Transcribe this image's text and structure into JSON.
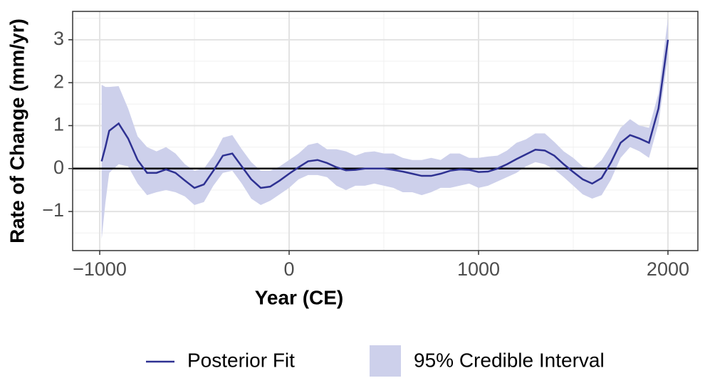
{
  "chart_data": {
    "type": "line",
    "x_label": "Year (CE)",
    "y_label": "Rate of Change (mm/yr)",
    "x": [
      -990,
      -970,
      -950,
      -900,
      -850,
      -800,
      -750,
      -700,
      -650,
      -600,
      -550,
      -500,
      -450,
      -400,
      -350,
      -300,
      -250,
      -200,
      -150,
      -100,
      -50,
      0,
      50,
      100,
      150,
      200,
      250,
      300,
      350,
      400,
      450,
      500,
      550,
      600,
      650,
      700,
      750,
      800,
      850,
      900,
      950,
      1000,
      1050,
      1100,
      1150,
      1200,
      1250,
      1300,
      1350,
      1400,
      1450,
      1500,
      1550,
      1600,
      1650,
      1700,
      1750,
      1800,
      1850,
      1900,
      1950,
      2000
    ],
    "series": [
      {
        "name": "Posterior Fit",
        "color": "#2e3192",
        "values": [
          0.17,
          0.5,
          0.88,
          1.05,
          0.7,
          0.2,
          -0.1,
          -0.1,
          -0.02,
          -0.1,
          -0.28,
          -0.45,
          -0.37,
          -0.05,
          0.3,
          0.35,
          0.05,
          -0.25,
          -0.45,
          -0.42,
          -0.28,
          -0.12,
          0.03,
          0.17,
          0.2,
          0.13,
          0.03,
          -0.04,
          -0.03,
          0.0,
          0.0,
          0.0,
          -0.03,
          -0.07,
          -0.12,
          -0.17,
          -0.17,
          -0.12,
          -0.05,
          -0.02,
          -0.03,
          -0.08,
          -0.07,
          0.0,
          0.1,
          0.22,
          0.33,
          0.44,
          0.42,
          0.3,
          0.1,
          -0.08,
          -0.25,
          -0.35,
          -0.22,
          0.15,
          0.6,
          0.78,
          0.7,
          0.6,
          1.4,
          3.0
        ]
      }
    ],
    "band": {
      "name": "95% Credible Interval",
      "color": "#cdd0eb",
      "lower": [
        -1.65,
        -0.8,
        -0.1,
        0.1,
        0.05,
        -0.35,
        -0.62,
        -0.55,
        -0.5,
        -0.55,
        -0.65,
        -0.85,
        -0.78,
        -0.4,
        -0.1,
        -0.05,
        -0.35,
        -0.7,
        -0.85,
        -0.75,
        -0.6,
        -0.45,
        -0.25,
        -0.15,
        -0.15,
        -0.2,
        -0.4,
        -0.5,
        -0.4,
        -0.4,
        -0.35,
        -0.4,
        -0.45,
        -0.55,
        -0.55,
        -0.62,
        -0.55,
        -0.45,
        -0.45,
        -0.4,
        -0.35,
        -0.45,
        -0.4,
        -0.3,
        -0.2,
        -0.1,
        0.05,
        0.15,
        0.1,
        -0.02,
        -0.2,
        -0.4,
        -0.6,
        -0.7,
        -0.62,
        -0.25,
        0.25,
        0.5,
        0.4,
        0.25,
        1.05,
        2.6
      ],
      "upper": [
        1.95,
        1.9,
        1.9,
        1.92,
        1.4,
        0.75,
        0.5,
        0.4,
        0.5,
        0.35,
        0.1,
        -0.05,
        0.0,
        0.3,
        0.72,
        0.78,
        0.45,
        0.15,
        -0.05,
        -0.05,
        0.05,
        0.2,
        0.35,
        0.55,
        0.6,
        0.45,
        0.45,
        0.4,
        0.3,
        0.38,
        0.4,
        0.35,
        0.35,
        0.25,
        0.2,
        0.2,
        0.25,
        0.2,
        0.35,
        0.35,
        0.25,
        0.25,
        0.28,
        0.3,
        0.42,
        0.6,
        0.68,
        0.82,
        0.82,
        0.62,
        0.4,
        0.25,
        0.05,
        0.0,
        0.2,
        0.55,
        0.95,
        1.15,
        1.0,
        0.95,
        1.75,
        3.5
      ]
    },
    "hline": 0,
    "xlim": [
      -1143,
      2158
    ],
    "ylim": [
      -1.91,
      3.66
    ],
    "xticks": [
      {
        "value": -1000,
        "label": "−1000"
      },
      0,
      1000,
      2000
    ],
    "yticks": [
      {
        "value": -1,
        "label": "−1"
      },
      0,
      1,
      2,
      3
    ],
    "x_minor_ticks": [
      -500,
      500,
      1500
    ],
    "y_minor_ticks": [
      -1.5,
      -0.5,
      0.5,
      1.5,
      2.5,
      3.5
    ],
    "grid": true,
    "legend": "bottom"
  }
}
